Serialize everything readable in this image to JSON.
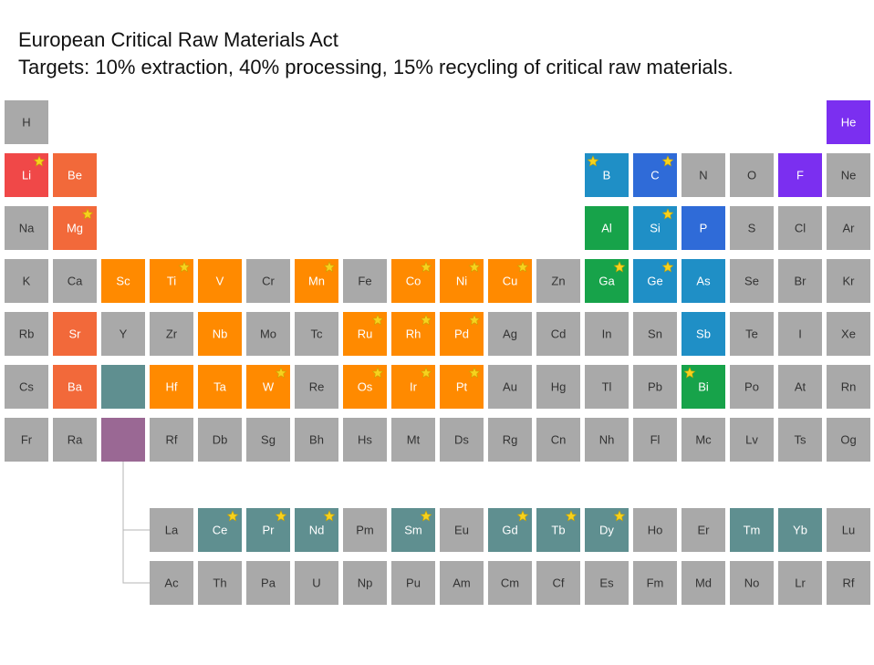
{
  "header": {
    "title": "European Critical Raw Materials Act",
    "subtitle": "Targets: 10% extraction, 40% processing, 15% recycling of critical raw materials."
  },
  "table": {
    "default_color": "#a9a9a9",
    "rows": [
      [
        {
          "symbol": "H"
        },
        null,
        null,
        null,
        null,
        null,
        null,
        null,
        null,
        null,
        null,
        null,
        null,
        null,
        null,
        null,
        null,
        {
          "symbol": "He",
          "color": "#7b2ff0"
        }
      ],
      [
        {
          "symbol": "Li",
          "color": "#f04848",
          "star": "right"
        },
        {
          "symbol": "Be",
          "color": "#f2693a"
        },
        null,
        null,
        null,
        null,
        null,
        null,
        null,
        null,
        null,
        null,
        {
          "symbol": "B",
          "color": "#1f8fc6",
          "star": "left"
        },
        {
          "symbol": "C",
          "color": "#2f6bd8",
          "star": "right"
        },
        {
          "symbol": "N"
        },
        {
          "symbol": "O"
        },
        {
          "symbol": "F",
          "color": "#7b2ff0"
        },
        {
          "symbol": "Ne"
        }
      ],
      [
        {
          "symbol": "Na"
        },
        {
          "symbol": "Mg",
          "color": "#f2693a",
          "star": "right"
        },
        null,
        null,
        null,
        null,
        null,
        null,
        null,
        null,
        null,
        null,
        {
          "symbol": "Al",
          "color": "#17a34a"
        },
        {
          "symbol": "Si",
          "color": "#1f8fc6",
          "star": "right"
        },
        {
          "symbol": "P",
          "color": "#2f6bd8"
        },
        {
          "symbol": "S"
        },
        {
          "symbol": "Cl"
        },
        {
          "symbol": "Ar"
        }
      ],
      [
        {
          "symbol": "K"
        },
        {
          "symbol": "Ca"
        },
        {
          "symbol": "Sc",
          "color": "#ff8a00"
        },
        {
          "symbol": "Ti",
          "color": "#ff8a00",
          "star": "right"
        },
        {
          "symbol": "V",
          "color": "#ff8a00"
        },
        {
          "symbol": "Cr"
        },
        {
          "symbol": "Mn",
          "color": "#ff8a00",
          "star": "right"
        },
        {
          "symbol": "Fe"
        },
        {
          "symbol": "Co",
          "color": "#ff8a00",
          "star": "right"
        },
        {
          "symbol": "Ni",
          "color": "#ff8a00",
          "star": "right"
        },
        {
          "symbol": "Cu",
          "color": "#ff8a00",
          "star": "right"
        },
        {
          "symbol": "Zn"
        },
        {
          "symbol": "Ga",
          "color": "#17a34a",
          "star": "right"
        },
        {
          "symbol": "Ge",
          "color": "#1f8fc6",
          "star": "right"
        },
        {
          "symbol": "As",
          "color": "#1f8fc6"
        },
        {
          "symbol": "Se"
        },
        {
          "symbol": "Br"
        },
        {
          "symbol": "Kr"
        }
      ],
      [
        {
          "symbol": "Rb"
        },
        {
          "symbol": "Sr",
          "color": "#f2693a"
        },
        {
          "symbol": "Y"
        },
        {
          "symbol": "Zr"
        },
        {
          "symbol": "Nb",
          "color": "#ff8a00"
        },
        {
          "symbol": "Mo"
        },
        {
          "symbol": "Tc"
        },
        {
          "symbol": "Ru",
          "color": "#ff8a00",
          "star": "right"
        },
        {
          "symbol": "Rh",
          "color": "#ff8a00",
          "star": "right"
        },
        {
          "symbol": "Pd",
          "color": "#ff8a00",
          "star": "right"
        },
        {
          "symbol": "Ag"
        },
        {
          "symbol": "Cd"
        },
        {
          "symbol": "In"
        },
        {
          "symbol": "Sn"
        },
        {
          "symbol": "Sb",
          "color": "#1f8fc6"
        },
        {
          "symbol": "Te"
        },
        {
          "symbol": "I"
        },
        {
          "symbol": "Xe"
        }
      ],
      [
        {
          "symbol": "Cs"
        },
        {
          "symbol": "Ba",
          "color": "#f2693a"
        },
        {
          "color": "#5f8f90"
        },
        {
          "symbol": "Hf",
          "color": "#ff8a00"
        },
        {
          "symbol": "Ta",
          "color": "#ff8a00"
        },
        {
          "symbol": "W",
          "color": "#ff8a00",
          "star": "right"
        },
        {
          "symbol": "Re"
        },
        {
          "symbol": "Os",
          "color": "#ff8a00",
          "star": "right"
        },
        {
          "symbol": "Ir",
          "color": "#ff8a00",
          "star": "right"
        },
        {
          "symbol": "Pt",
          "color": "#ff8a00",
          "star": "right"
        },
        {
          "symbol": "Au"
        },
        {
          "symbol": "Hg"
        },
        {
          "symbol": "Tl"
        },
        {
          "symbol": "Pb"
        },
        {
          "symbol": "Bi",
          "color": "#17a34a",
          "star": "left"
        },
        {
          "symbol": "Po"
        },
        {
          "symbol": "At"
        },
        {
          "symbol": "Rn"
        }
      ],
      [
        {
          "symbol": "Fr"
        },
        {
          "symbol": "Ra"
        },
        {
          "color": "#9a6894"
        },
        {
          "symbol": "Rf"
        },
        {
          "symbol": "Db"
        },
        {
          "symbol": "Sg"
        },
        {
          "symbol": "Bh"
        },
        {
          "symbol": "Hs"
        },
        {
          "symbol": "Mt"
        },
        {
          "symbol": "Ds"
        },
        {
          "symbol": "Rg"
        },
        {
          "symbol": "Cn"
        },
        {
          "symbol": "Nh"
        },
        {
          "symbol": "Fl"
        },
        {
          "symbol": "Mc"
        },
        {
          "symbol": "Lv"
        },
        {
          "symbol": "Ts"
        },
        {
          "symbol": "Og"
        }
      ]
    ],
    "f_rows": [
      [
        null,
        null,
        null,
        {
          "symbol": "La"
        },
        {
          "symbol": "Ce",
          "color": "#5f8f90",
          "star": "right"
        },
        {
          "symbol": "Pr",
          "color": "#5f8f90",
          "star": "right"
        },
        {
          "symbol": "Nd",
          "color": "#5f8f90",
          "star": "right"
        },
        {
          "symbol": "Pm"
        },
        {
          "symbol": "Sm",
          "color": "#5f8f90",
          "star": "right"
        },
        {
          "symbol": "Eu"
        },
        {
          "symbol": "Gd",
          "color": "#5f8f90",
          "star": "right"
        },
        {
          "symbol": "Tb",
          "color": "#5f8f90",
          "star": "right"
        },
        {
          "symbol": "Dy",
          "color": "#5f8f90",
          "star": "right"
        },
        {
          "symbol": "Ho"
        },
        {
          "symbol": "Er"
        },
        {
          "symbol": "Tm",
          "color": "#5f8f90"
        },
        {
          "symbol": "Yb",
          "color": "#5f8f90"
        },
        {
          "symbol": "Lu"
        }
      ],
      [
        null,
        null,
        null,
        {
          "symbol": "Ac"
        },
        {
          "symbol": "Th"
        },
        {
          "symbol": "Pa"
        },
        {
          "symbol": "U"
        },
        {
          "symbol": "Np"
        },
        {
          "symbol": "Pu"
        },
        {
          "symbol": "Am"
        },
        {
          "symbol": "Cm"
        },
        {
          "symbol": "Cf"
        },
        {
          "symbol": "Es"
        },
        {
          "symbol": "Fm"
        },
        {
          "symbol": "Md"
        },
        {
          "symbol": "No"
        },
        {
          "symbol": "Lr"
        },
        {
          "symbol": "Rf"
        }
      ]
    ]
  }
}
